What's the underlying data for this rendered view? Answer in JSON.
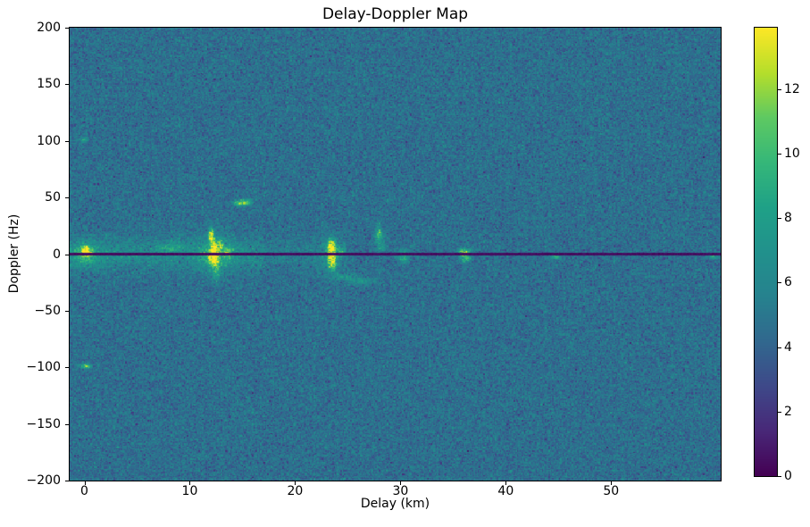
{
  "chart_data": {
    "type": "heatmap",
    "title": "Delay-Doppler Map",
    "xlabel": "Delay (km)",
    "ylabel": "Doppler (Hz)",
    "xlim": [
      -1.4,
      60.4
    ],
    "ylim": [
      -200,
      200
    ],
    "xticks": {
      "values": [
        0,
        10,
        20,
        30,
        40,
        50
      ],
      "labels": [
        "0",
        "10",
        "20",
        "30",
        "40",
        "50"
      ]
    },
    "yticks": {
      "values": [
        200,
        150,
        100,
        50,
        0,
        -50,
        -100,
        -150,
        -200
      ],
      "labels": [
        "200",
        "150",
        "100",
        "50",
        "0",
        "−50",
        "−100",
        "−150",
        "−200"
      ]
    },
    "grid": false,
    "colormap": "viridis",
    "colormap_stops": [
      "#440154",
      "#482878",
      "#3e4989",
      "#31688e",
      "#26828e",
      "#21918c",
      "#1fa187",
      "#35b779",
      "#5ec962",
      "#b5de2b",
      "#fde725"
    ],
    "colorbar": {
      "vmin": 0,
      "vmax": 13.9,
      "tick_values": [
        0,
        2,
        4,
        6,
        8,
        10,
        12
      ],
      "tick_labels": [
        "0",
        "2",
        "4",
        "6",
        "8",
        "10",
        "12"
      ]
    },
    "noise": {
      "mean": 4.6,
      "std": 0.95,
      "seed": 1337
    },
    "zero_doppler_line": {
      "doppler": -0.4,
      "halfwidth_hz": 1.0,
      "value_min": 0.1,
      "value_max": 0.7
    },
    "clutter_band": {
      "delay_end_strong": 17,
      "delay_end_weak": 24,
      "amp_strong": 1.9,
      "amp_weak": 0.8,
      "sigma_hz": 9
    },
    "hotspots": [
      {
        "delay": 0.15,
        "doppler": 2,
        "sx": 0.3,
        "sy": 2.8,
        "amp": 10.0
      },
      {
        "delay": 0.15,
        "doppler": 0,
        "sx": 1.0,
        "sy": 7.0,
        "amp": 2.8
      },
      {
        "delay": -0.1,
        "doppler": 101,
        "sx": 0.28,
        "sy": 1.4,
        "amp": 3.2
      },
      {
        "delay": 0.1,
        "doppler": -99,
        "sx": 0.42,
        "sy": 1.4,
        "amp": 5.5
      },
      {
        "delay": 8.2,
        "doppler": 6,
        "sx": 0.7,
        "sy": 3.5,
        "amp": 2.4
      },
      {
        "delay": 12.05,
        "doppler": 16,
        "sx": 0.18,
        "sy": 4.5,
        "amp": 10.0
      },
      {
        "delay": 12.35,
        "doppler": 6,
        "sx": 0.2,
        "sy": 4.0,
        "amp": 7.0
      },
      {
        "delay": 12.9,
        "doppler": 8,
        "sx": 0.18,
        "sy": 3.5,
        "amp": 5.0
      },
      {
        "delay": 12.2,
        "doppler": -3,
        "sx": 0.3,
        "sy": 4.0,
        "amp": 9.0
      },
      {
        "delay": 12.3,
        "doppler": 0,
        "sx": 1.3,
        "sy": 11.0,
        "amp": 2.5
      },
      {
        "delay": 12.5,
        "doppler": -14,
        "sx": 0.3,
        "sy": 7.0,
        "amp": 3.2
      },
      {
        "delay": 13.6,
        "doppler": 2,
        "sx": 0.25,
        "sy": 3.0,
        "amp": 4.0
      },
      {
        "delay": 14.6,
        "doppler": 45,
        "sx": 0.35,
        "sy": 1.8,
        "amp": 6.0
      },
      {
        "delay": 15.4,
        "doppler": 46,
        "sx": 0.3,
        "sy": 1.8,
        "amp": 6.5
      },
      {
        "delay": 23.45,
        "doppler": 5,
        "sx": 0.25,
        "sy": 5.0,
        "amp": 9.5
      },
      {
        "delay": 23.5,
        "doppler": -7,
        "sx": 0.25,
        "sy": 4.5,
        "amp": 8.0
      },
      {
        "delay": 23.5,
        "doppler": 0,
        "sx": 0.8,
        "sy": 11.0,
        "amp": 2.2
      },
      {
        "delay": 24.4,
        "doppler": 2.5,
        "sx": 0.28,
        "sy": 2.5,
        "amp": 4.0
      },
      {
        "delay": 24.9,
        "doppler": -20,
        "sx": 0.9,
        "sy": 2.2,
        "amp": 2.2
      },
      {
        "delay": 26.3,
        "doppler": -24,
        "sx": 0.9,
        "sy": 2.2,
        "amp": 2.2
      },
      {
        "delay": 27.95,
        "doppler": 17,
        "sx": 0.28,
        "sy": 6.0,
        "amp": 4.5
      },
      {
        "delay": 28.2,
        "doppler": 6,
        "sx": 0.25,
        "sy": 2.5,
        "amp": 2.5
      },
      {
        "delay": 30.3,
        "doppler": -2,
        "sx": 0.35,
        "sy": 3.5,
        "amp": 5.0
      },
      {
        "delay": 36.1,
        "doppler": 1.5,
        "sx": 0.4,
        "sy": 2.5,
        "amp": 7.0
      },
      {
        "delay": 36.2,
        "doppler": -4,
        "sx": 0.35,
        "sy": 2.5,
        "amp": 4.5
      },
      {
        "delay": 44.7,
        "doppler": -2.5,
        "sx": 0.35,
        "sy": 1.3,
        "amp": 4.5
      },
      {
        "delay": 59.7,
        "doppler": -2,
        "sx": 0.25,
        "sy": 1.5,
        "amp": 4.5
      }
    ]
  }
}
